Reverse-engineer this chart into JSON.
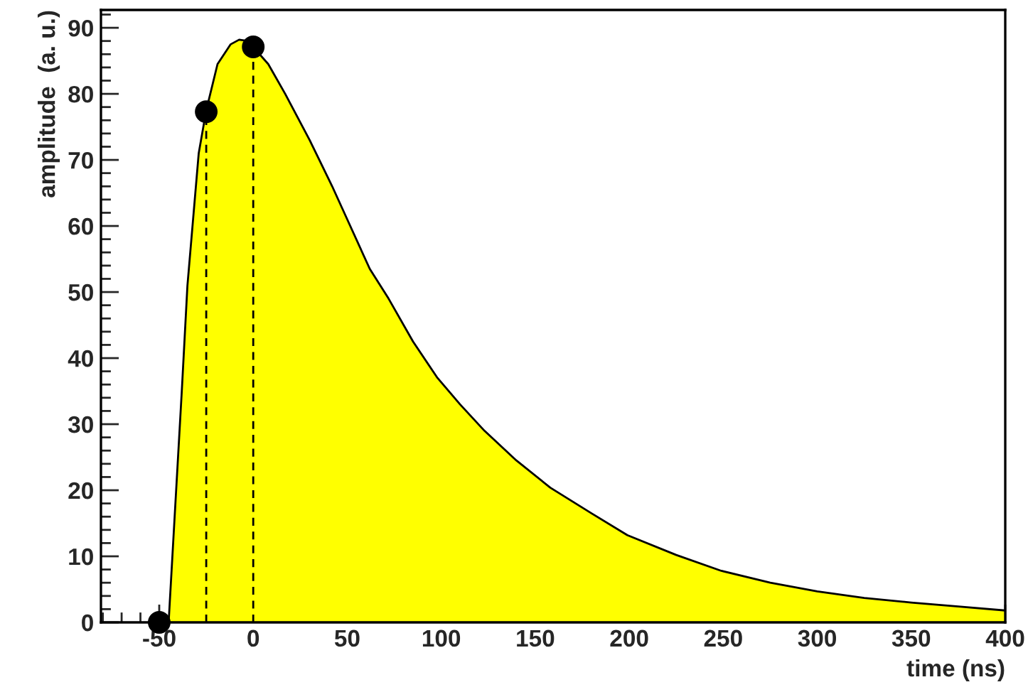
{
  "chart_data": {
    "type": "area",
    "xlabel": "time (ns)",
    "ylabel": "amplitude  (a. u.)",
    "xlim": [
      -81,
      400
    ],
    "ylim": [
      0,
      92.7
    ],
    "xticks": [
      -50,
      0,
      50,
      100,
      150,
      200,
      250,
      300,
      350,
      400
    ],
    "yticks": [
      0,
      10,
      20,
      30,
      40,
      50,
      60,
      70,
      80,
      90
    ],
    "grid": false,
    "legend": false,
    "series": [
      {
        "color": "#ffff00",
        "x": [
          -45,
          -42.5,
          -38,
          -35,
          -29,
          -25,
          -19,
          -12,
          -7.5,
          -3,
          0,
          8,
          17,
          30,
          42,
          50,
          62,
          72,
          85,
          98,
          110,
          123,
          140,
          158,
          180,
          199,
          225,
          249,
          275,
          300,
          325,
          350,
          375,
          400
        ],
        "values": [
          0,
          12.5,
          35,
          51,
          71,
          77.5,
          84.5,
          87.5,
          88.2,
          88,
          87.1,
          84.5,
          80,
          73,
          66,
          61,
          53.5,
          49,
          42.5,
          37,
          33,
          29,
          24.5,
          20.4,
          16.5,
          13.2,
          10.2,
          7.8,
          6,
          4.7,
          3.7,
          3,
          2.4,
          1.8
        ]
      },
      {
        "type": "scatter",
        "color": "#000000",
        "marker": "circle",
        "x": [
          -50,
          -25,
          0
        ],
        "values": [
          0,
          77.3,
          87.1
        ]
      }
    ],
    "ref_lines": [
      {
        "axis": "x",
        "value": -25,
        "line_style": "dashed",
        "color": "#000000"
      },
      {
        "axis": "x",
        "value": 0,
        "line_style": "dashed",
        "color": "#000000"
      }
    ]
  }
}
